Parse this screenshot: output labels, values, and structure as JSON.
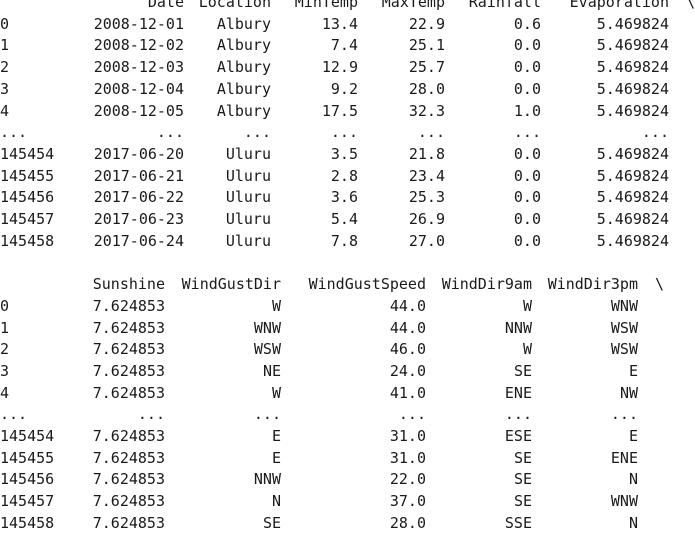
{
  "block1": {
    "headers": [
      "",
      "Date",
      "Location",
      "MinTemp",
      "MaxTemp",
      "Rainfall",
      "Evaporation",
      "\\"
    ],
    "rows": [
      [
        "0",
        "2008-12-01",
        "Albury",
        "13.4",
        "22.9",
        "0.6",
        "5.469824",
        ""
      ],
      [
        "1",
        "2008-12-02",
        "Albury",
        "7.4",
        "25.1",
        "0.0",
        "5.469824",
        ""
      ],
      [
        "2",
        "2008-12-03",
        "Albury",
        "12.9",
        "25.7",
        "0.0",
        "5.469824",
        ""
      ],
      [
        "3",
        "2008-12-04",
        "Albury",
        "9.2",
        "28.0",
        "0.0",
        "5.469824",
        ""
      ],
      [
        "4",
        "2008-12-05",
        "Albury",
        "17.5",
        "32.3",
        "1.0",
        "5.469824",
        ""
      ],
      [
        "...",
        "...",
        "...",
        "...",
        "...",
        "...",
        "...",
        ""
      ],
      [
        "145454",
        "2017-06-20",
        "Uluru",
        "3.5",
        "21.8",
        "0.0",
        "5.469824",
        ""
      ],
      [
        "145455",
        "2017-06-21",
        "Uluru",
        "2.8",
        "23.4",
        "0.0",
        "5.469824",
        ""
      ],
      [
        "145456",
        "2017-06-22",
        "Uluru",
        "3.6",
        "25.3",
        "0.0",
        "5.469824",
        ""
      ],
      [
        "145457",
        "2017-06-23",
        "Uluru",
        "5.4",
        "26.9",
        "0.0",
        "5.469824",
        ""
      ],
      [
        "145458",
        "2017-06-24",
        "Uluru",
        "7.8",
        "27.0",
        "0.0",
        "5.469824",
        ""
      ]
    ]
  },
  "block2": {
    "headers": [
      "",
      "Sunshine",
      "WindGustDir",
      "WindGustSpeed",
      "WindDir9am",
      "WindDir3pm",
      "\\"
    ],
    "rows": [
      [
        "0",
        "7.624853",
        "W",
        "44.0",
        "W",
        "WNW",
        ""
      ],
      [
        "1",
        "7.624853",
        "WNW",
        "44.0",
        "NNW",
        "WSW",
        ""
      ],
      [
        "2",
        "7.624853",
        "WSW",
        "46.0",
        "W",
        "WSW",
        ""
      ],
      [
        "3",
        "7.624853",
        "NE",
        "24.0",
        "SE",
        "E",
        ""
      ],
      [
        "4",
        "7.624853",
        "W",
        "41.0",
        "ENE",
        "NW",
        ""
      ],
      [
        "...",
        "...",
        "...",
        "...",
        "...",
        "...",
        ""
      ],
      [
        "145454",
        "7.624853",
        "E",
        "31.0",
        "ESE",
        "E",
        ""
      ],
      [
        "145455",
        "7.624853",
        "E",
        "31.0",
        "SE",
        "ENE",
        ""
      ],
      [
        "145456",
        "7.624853",
        "NNW",
        "22.0",
        "SE",
        "N",
        ""
      ],
      [
        "145457",
        "7.624853",
        "N",
        "37.0",
        "SE",
        "WNW",
        ""
      ],
      [
        "145458",
        "7.624853",
        "SE",
        "28.0",
        "SSE",
        "N",
        ""
      ]
    ]
  }
}
